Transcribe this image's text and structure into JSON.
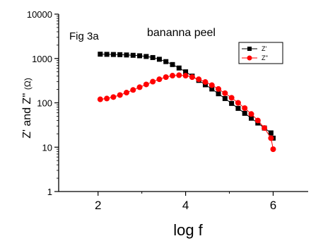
{
  "chart_data": {
    "type": "scatter",
    "annotation_left": "Fig 3a",
    "annotation_right": "bananna peel",
    "xlabel": "log f",
    "ylabel_main": "Z' and Z'' ",
    "ylabel_unit": "(Ω)",
    "xlim": [
      1.1,
      6.8
    ],
    "ylim": [
      1,
      10000
    ],
    "y_scale": "log",
    "x_ticks": [
      2,
      4,
      6
    ],
    "x_tick_labels": [
      "2",
      "4",
      "6"
    ],
    "y_ticks": [
      1,
      10,
      100,
      1000,
      10000
    ],
    "y_tick_labels": [
      "1",
      "10",
      "100",
      "1000",
      "10000"
    ],
    "legend_position": "top-right",
    "series": [
      {
        "name": "Z'",
        "color": "#000000",
        "marker": "square",
        "points": [
          [
            2.05,
            1250
          ],
          [
            2.2,
            1240
          ],
          [
            2.35,
            1230
          ],
          [
            2.5,
            1220
          ],
          [
            2.65,
            1200
          ],
          [
            2.8,
            1180
          ],
          [
            2.95,
            1150
          ],
          [
            3.1,
            1110
          ],
          [
            3.25,
            1050
          ],
          [
            3.4,
            960
          ],
          [
            3.55,
            850
          ],
          [
            3.7,
            730
          ],
          [
            3.85,
            610
          ],
          [
            4.0,
            500
          ],
          [
            4.15,
            400
          ],
          [
            4.3,
            320
          ],
          [
            4.45,
            255
          ],
          [
            4.6,
            205
          ],
          [
            4.75,
            160
          ],
          [
            4.9,
            125
          ],
          [
            5.05,
            97
          ],
          [
            5.2,
            75
          ],
          [
            5.35,
            58
          ],
          [
            5.5,
            45
          ],
          [
            5.65,
            35
          ],
          [
            5.8,
            27
          ],
          [
            5.95,
            21
          ],
          [
            6.0,
            16
          ]
        ]
      },
      {
        "name": "Z''",
        "color": "#ff0000",
        "marker": "circle",
        "points": [
          [
            2.05,
            120
          ],
          [
            2.2,
            125
          ],
          [
            2.35,
            135
          ],
          [
            2.5,
            150
          ],
          [
            2.65,
            170
          ],
          [
            2.8,
            195
          ],
          [
            2.95,
            225
          ],
          [
            3.1,
            260
          ],
          [
            3.25,
            300
          ],
          [
            3.4,
            340
          ],
          [
            3.55,
            380
          ],
          [
            3.7,
            410
          ],
          [
            3.85,
            420
          ],
          [
            4.0,
            410
          ],
          [
            4.15,
            380
          ],
          [
            4.3,
            340
          ],
          [
            4.45,
            295
          ],
          [
            4.6,
            250
          ],
          [
            4.75,
            205
          ],
          [
            4.9,
            165
          ],
          [
            5.05,
            130
          ],
          [
            5.2,
            100
          ],
          [
            5.35,
            76
          ],
          [
            5.5,
            56
          ],
          [
            5.65,
            40
          ],
          [
            5.8,
            27
          ],
          [
            5.95,
            16
          ],
          [
            6.0,
            9
          ]
        ]
      }
    ]
  }
}
